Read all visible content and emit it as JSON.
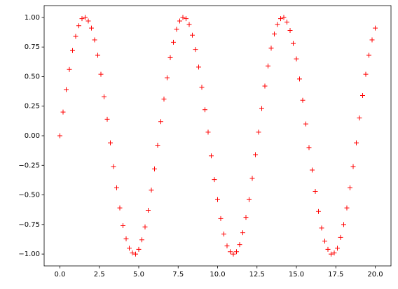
{
  "chart_data": {
    "type": "scatter",
    "marker": "+",
    "color": "red",
    "x": [
      0,
      0.2,
      0.4,
      0.6,
      0.8,
      1.0,
      1.2,
      1.4,
      1.6,
      1.8,
      2.0,
      2.2,
      2.4,
      2.6,
      2.8,
      3.0,
      3.2,
      3.4,
      3.6,
      3.8,
      4.0,
      4.2,
      4.4,
      4.6,
      4.8,
      5.0,
      5.2,
      5.4,
      5.6,
      5.8,
      6.0,
      6.2,
      6.4,
      6.6,
      6.8,
      7.0,
      7.2,
      7.4,
      7.6,
      7.8,
      8.0,
      8.2,
      8.4,
      8.6,
      8.8,
      9.0,
      9.2,
      9.4,
      9.6,
      9.8,
      10.0,
      10.2,
      10.4,
      10.6,
      10.8,
      11.0,
      11.2,
      11.4,
      11.6,
      11.8,
      12.0,
      12.2,
      12.4,
      12.6,
      12.8,
      13.0,
      13.2,
      13.4,
      13.6,
      13.8,
      14.0,
      14.2,
      14.4,
      14.6,
      14.8,
      15.0,
      15.2,
      15.4,
      15.6,
      15.8,
      16.0,
      16.2,
      16.4,
      16.6,
      16.8,
      17.0,
      17.2,
      17.4,
      17.6,
      17.8,
      18.0,
      18.2,
      18.4,
      18.6,
      18.8,
      19.0,
      19.2,
      19.4,
      19.6,
      19.8,
      20.0
    ],
    "values": [
      0.0,
      0.2,
      0.39,
      0.56,
      0.72,
      0.84,
      0.93,
      0.99,
      1.0,
      0.97,
      0.91,
      0.81,
      0.68,
      0.52,
      0.33,
      0.14,
      -0.06,
      -0.26,
      -0.44,
      -0.61,
      -0.76,
      -0.87,
      -0.95,
      -0.99,
      -1.0,
      -0.96,
      -0.88,
      -0.77,
      -0.63,
      -0.46,
      -0.28,
      -0.08,
      0.12,
      0.31,
      0.49,
      0.66,
      0.79,
      0.9,
      0.97,
      1.0,
      0.99,
      0.94,
      0.85,
      0.73,
      0.58,
      0.41,
      0.22,
      0.03,
      -0.17,
      -0.37,
      -0.54,
      -0.7,
      -0.83,
      -0.93,
      -0.98,
      -1.0,
      -0.98,
      -0.92,
      -0.82,
      -0.69,
      -0.54,
      -0.36,
      -0.16,
      0.03,
      0.23,
      0.42,
      0.59,
      0.74,
      0.86,
      0.94,
      0.99,
      1.0,
      0.96,
      0.89,
      0.78,
      0.65,
      0.48,
      0.3,
      0.1,
      -0.1,
      -0.29,
      -0.47,
      -0.64,
      -0.78,
      -0.89,
      -0.96,
      -1.0,
      -0.99,
      -0.95,
      -0.86,
      -0.75,
      -0.61,
      -0.44,
      -0.26,
      -0.06,
      0.15,
      0.34,
      0.52,
      0.68,
      0.81,
      0.91
    ],
    "xlim": [
      -1,
      21
    ],
    "ylim": [
      -1.1,
      1.1
    ],
    "xticks": [
      {
        "value": 0,
        "label": "0.0"
      },
      {
        "value": 2.5,
        "label": "2.5"
      },
      {
        "value": 5,
        "label": "5.0"
      },
      {
        "value": 7.5,
        "label": "7.5"
      },
      {
        "value": 10,
        "label": "10.0"
      },
      {
        "value": 12.5,
        "label": "12.5"
      },
      {
        "value": 15,
        "label": "15.0"
      },
      {
        "value": 17.5,
        "label": "17.5"
      },
      {
        "value": 20,
        "label": "20.0"
      }
    ],
    "yticks": [
      {
        "value": -1,
        "label": "−1.00"
      },
      {
        "value": -0.75,
        "label": "−0.75"
      },
      {
        "value": -0.5,
        "label": "−0.50"
      },
      {
        "value": -0.25,
        "label": "−0.25"
      },
      {
        "value": 0,
        "label": "0.00"
      },
      {
        "value": 0.25,
        "label": "0.25"
      },
      {
        "value": 0.5,
        "label": "0.50"
      },
      {
        "value": 0.75,
        "label": "0.75"
      },
      {
        "value": 1,
        "label": "1.00"
      }
    ],
    "grid": false
  }
}
